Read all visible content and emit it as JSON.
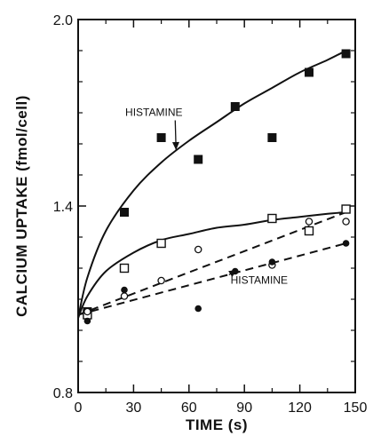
{
  "chart_data": {
    "type": "scatter",
    "xlabel": "TIME (s)",
    "ylabel": "CALCIUM UPTAKE (fmol/cell)",
    "xlim": [
      0,
      150
    ],
    "ylim": [
      0.8,
      2.0
    ],
    "x_ticks": [
      0,
      30,
      60,
      90,
      120,
      150
    ],
    "y_ticks": [
      0.8,
      1.4,
      2.0
    ],
    "x_tick_labels": [
      "0",
      "30",
      "60",
      "90",
      "120",
      "150"
    ],
    "y_tick_labels": [
      "0.8",
      "1.4",
      "2.0"
    ],
    "grid": false,
    "series": [
      {
        "marker": "filled-square",
        "fit": "solid",
        "points": [
          [
            5,
            1.06
          ],
          [
            25,
            1.38
          ],
          [
            45,
            1.62
          ],
          [
            65,
            1.55
          ],
          [
            85,
            1.72
          ],
          [
            105,
            1.62
          ],
          [
            125,
            1.83
          ],
          [
            145,
            1.89
          ]
        ],
        "curve": [
          [
            0,
            1.04
          ],
          [
            5,
            1.17
          ],
          [
            15,
            1.32
          ],
          [
            30,
            1.45
          ],
          [
            45,
            1.54
          ],
          [
            60,
            1.61
          ],
          [
            75,
            1.67
          ],
          [
            90,
            1.73
          ],
          [
            105,
            1.78
          ],
          [
            120,
            1.83
          ],
          [
            135,
            1.87
          ],
          [
            145,
            1.9
          ]
        ]
      },
      {
        "marker": "open-square",
        "fit": "solid",
        "points": [
          [
            5,
            1.05
          ],
          [
            25,
            1.2
          ],
          [
            45,
            1.28
          ],
          [
            105,
            1.36
          ],
          [
            125,
            1.32
          ],
          [
            145,
            1.39
          ]
        ],
        "curve": [
          [
            0,
            1.04
          ],
          [
            5,
            1.11
          ],
          [
            15,
            1.19
          ],
          [
            30,
            1.25
          ],
          [
            45,
            1.29
          ],
          [
            60,
            1.31
          ],
          [
            75,
            1.33
          ],
          [
            90,
            1.34
          ],
          [
            105,
            1.355
          ],
          [
            120,
            1.365
          ],
          [
            135,
            1.375
          ],
          [
            145,
            1.38
          ]
        ]
      },
      {
        "marker": "open-circle",
        "fit": "dashed",
        "points": [
          [
            5,
            1.06
          ],
          [
            25,
            1.11
          ],
          [
            45,
            1.16
          ],
          [
            65,
            1.26
          ],
          [
            105,
            1.21
          ],
          [
            125,
            1.35
          ],
          [
            145,
            1.35
          ]
        ],
        "curve": [
          [
            0,
            1.05
          ],
          [
            145,
            1.38
          ]
        ]
      },
      {
        "marker": "filled-circle",
        "fit": "dashed",
        "points": [
          [
            5,
            1.03
          ],
          [
            25,
            1.13
          ],
          [
            65,
            1.07
          ],
          [
            85,
            1.19
          ],
          [
            105,
            1.22
          ],
          [
            145,
            1.28
          ]
        ],
        "curve": [
          [
            0,
            1.05
          ],
          [
            145,
            1.28
          ]
        ]
      }
    ],
    "annotations": [
      {
        "text": "HISTAMINE",
        "x": 41,
        "y": 1.69,
        "arrow_to": [
          53,
          1.58
        ]
      },
      {
        "text": "HISTAMINE",
        "x": 98,
        "y": 1.15,
        "arrow_to": [
          86,
          1.195
        ]
      }
    ]
  }
}
